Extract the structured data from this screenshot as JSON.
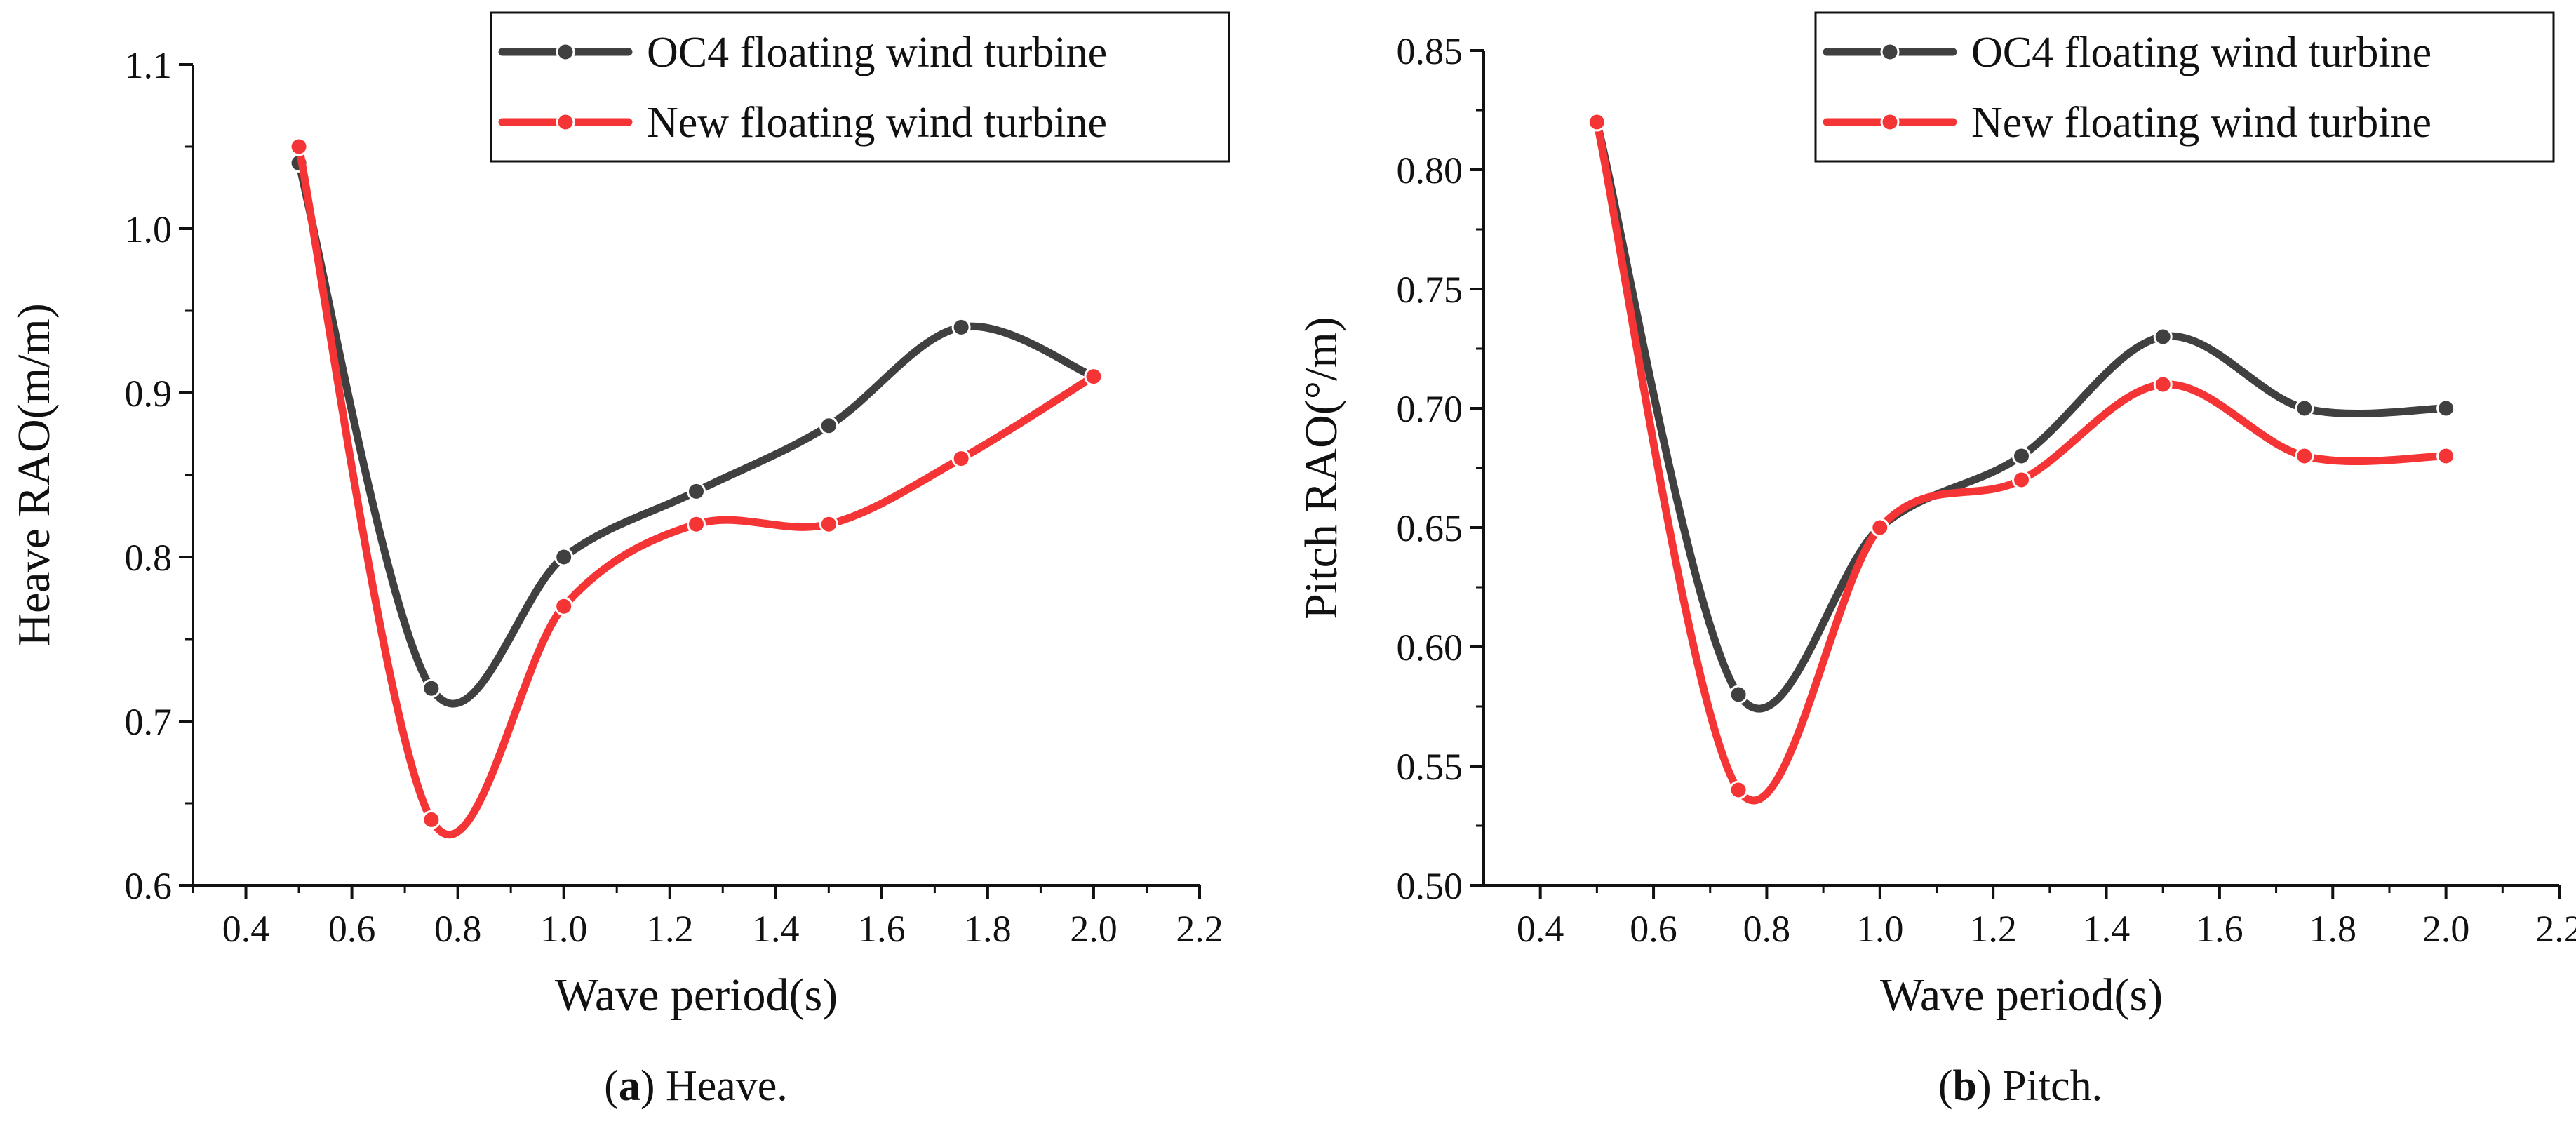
{
  "charts": [
    {
      "type": "line",
      "xlabel": "Wave period(s)",
      "ylabel": "Heave RAO(m/m)",
      "xlim": [
        0.3,
        2.2
      ],
      "ylim": [
        0.6,
        1.1
      ],
      "xticks": [
        0.4,
        0.6,
        0.8,
        1.0,
        1.2,
        1.4,
        1.6,
        1.8,
        2.0,
        2.2
      ],
      "yticks": [
        0.6,
        0.7,
        0.8,
        0.9,
        1.0,
        1.1
      ],
      "x_decimals": 1,
      "y_decimals": 1,
      "caption_letter": "a",
      "caption_text": " Heave.",
      "series": [
        {
          "name": "OC4 floating wind turbine",
          "color": "#404040",
          "x": [
            0.5,
            0.75,
            1.0,
            1.25,
            1.5,
            1.75,
            2.0
          ],
          "values": [
            1.04,
            0.72,
            0.8,
            0.84,
            0.88,
            0.94,
            0.91
          ]
        },
        {
          "name": "New floating wind turbine",
          "color": "#f53535",
          "x": [
            0.5,
            0.75,
            1.0,
            1.25,
            1.5,
            1.75,
            2.0
          ],
          "values": [
            1.05,
            0.64,
            0.77,
            0.82,
            0.82,
            0.86,
            0.91
          ]
        }
      ]
    },
    {
      "type": "line",
      "xlabel": "Wave period(s)",
      "ylabel": "Pitch RAO(°/m)",
      "xlim": [
        0.3,
        2.2
      ],
      "ylim": [
        0.5,
        0.85
      ],
      "xticks": [
        0.4,
        0.6,
        0.8,
        1.0,
        1.2,
        1.4,
        1.6,
        1.8,
        2.0,
        2.2
      ],
      "yticks": [
        0.5,
        0.55,
        0.6,
        0.65,
        0.7,
        0.75,
        0.8,
        0.85
      ],
      "x_decimals": 1,
      "y_decimals": 2,
      "caption_letter": "b",
      "caption_text": " Pitch.",
      "series": [
        {
          "name": "OC4 floating wind turbine",
          "color": "#404040",
          "x": [
            0.5,
            0.75,
            1.0,
            1.25,
            1.5,
            1.75,
            2.0
          ],
          "values": [
            0.82,
            0.58,
            0.65,
            0.68,
            0.73,
            0.7,
            0.7
          ]
        },
        {
          "name": "New floating wind turbine",
          "color": "#f53535",
          "x": [
            0.5,
            0.75,
            1.0,
            1.25,
            1.5,
            1.75,
            2.0
          ],
          "values": [
            0.82,
            0.54,
            0.65,
            0.67,
            0.71,
            0.68,
            0.68
          ]
        }
      ]
    }
  ]
}
